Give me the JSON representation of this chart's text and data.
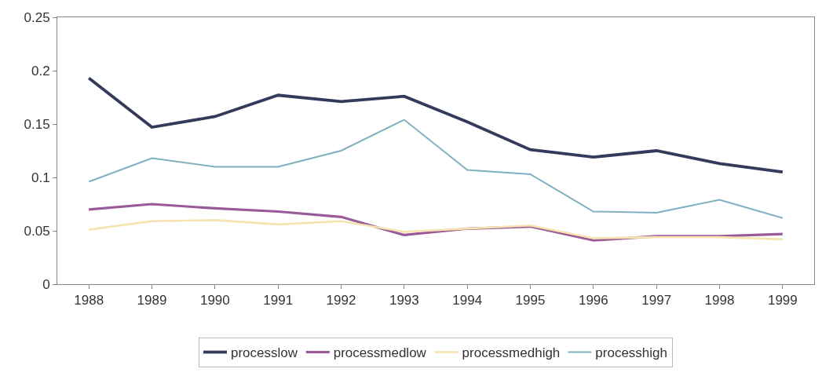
{
  "chart_data": {
    "type": "line",
    "categories": [
      "1988",
      "1989",
      "1990",
      "1991",
      "1992",
      "1993",
      "1994",
      "1995",
      "1996",
      "1997",
      "1998",
      "1999"
    ],
    "ylim": [
      0,
      0.25
    ],
    "yticks": [
      0,
      0.05,
      0.1,
      0.15,
      0.2,
      0.25
    ],
    "grid": false,
    "legend": "bottom",
    "line_style": "solid",
    "marker": "none",
    "series": [
      {
        "name": "processlow",
        "color": "#333a5c",
        "values": [
          0.193,
          0.147,
          0.157,
          0.177,
          0.171,
          0.176,
          0.152,
          0.126,
          0.119,
          0.125,
          0.113,
          0.105
        ]
      },
      {
        "name": "processmedlow",
        "color": "#9a5a9a",
        "values": [
          0.07,
          0.075,
          0.071,
          0.068,
          0.063,
          0.046,
          0.052,
          0.054,
          0.041,
          0.045,
          0.045,
          0.047
        ]
      },
      {
        "name": "processmedhigh",
        "color": "#f5e4b0",
        "values": [
          0.051,
          0.059,
          0.06,
          0.056,
          0.059,
          0.049,
          0.052,
          0.055,
          0.043,
          0.044,
          0.044,
          0.042
        ]
      },
      {
        "name": "processhigh",
        "color": "#7fb0c0",
        "values": [
          0.096,
          0.118,
          0.11,
          0.11,
          0.125,
          0.154,
          0.107,
          0.103,
          0.068,
          0.067,
          0.079,
          0.062
        ]
      }
    ]
  }
}
